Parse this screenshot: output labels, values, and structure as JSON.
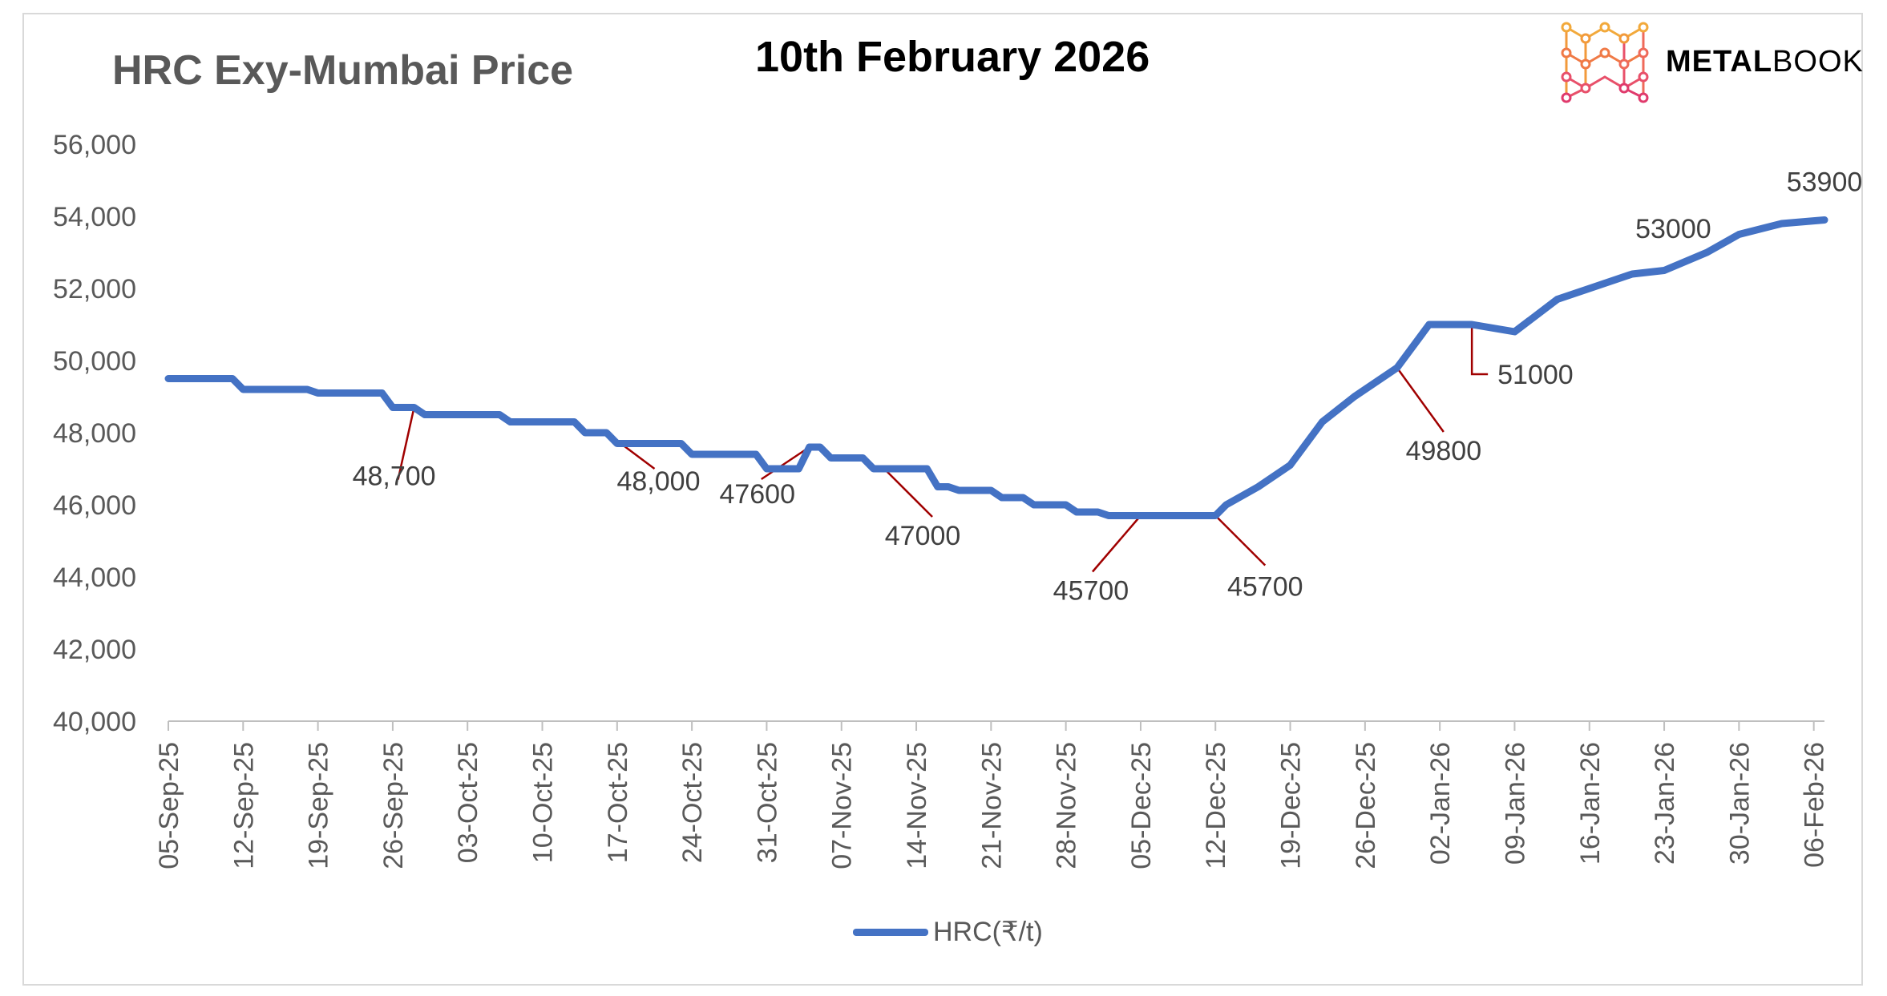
{
  "header": {
    "title": "HRC Exy-Mumbai Price",
    "date": "10th February 2026",
    "brand_bold": "METAL",
    "brand_light": "BOOK"
  },
  "colors": {
    "series": "#4472c4",
    "leader": "#a00000",
    "axis": "#bfbfbf",
    "tick_text": "#595959"
  },
  "chart_data": {
    "type": "line",
    "title": "HRC Exy-Mumbai Price",
    "xlabel": "",
    "ylabel": "",
    "ylim": [
      40000,
      56000
    ],
    "yticks": [
      40000,
      42000,
      44000,
      46000,
      48000,
      50000,
      52000,
      54000,
      56000
    ],
    "ytick_labels": [
      "40,000",
      "42,000",
      "44,000",
      "46,000",
      "48,000",
      "50,000",
      "52,000",
      "54,000",
      "56,000"
    ],
    "x_start": "2025-09-05",
    "xticks": [
      "05-Sep-25",
      "12-Sep-25",
      "19-Sep-25",
      "26-Sep-25",
      "03-Oct-25",
      "10-Oct-25",
      "17-Oct-25",
      "24-Oct-25",
      "31-Oct-25",
      "07-Nov-25",
      "14-Nov-25",
      "21-Nov-25",
      "28-Nov-25",
      "05-Dec-25",
      "12-Dec-25",
      "19-Dec-25",
      "26-Dec-25",
      "02-Jan-26",
      "09-Jan-26",
      "16-Jan-26",
      "23-Jan-26",
      "30-Jan-26",
      "06-Feb-26"
    ],
    "legend": "bottom",
    "grid": false,
    "series": [
      {
        "name": "HRC(₹/t)",
        "points": [
          [
            "2025-09-05",
            49500
          ],
          [
            "2025-09-11",
            49500
          ],
          [
            "2025-09-12",
            49200
          ],
          [
            "2025-09-18",
            49200
          ],
          [
            "2025-09-19",
            49100
          ],
          [
            "2025-09-25",
            49100
          ],
          [
            "2025-09-26",
            48700
          ],
          [
            "2025-09-28",
            48700
          ],
          [
            "2025-09-29",
            48500
          ],
          [
            "2025-10-06",
            48500
          ],
          [
            "2025-10-07",
            48300
          ],
          [
            "2025-10-13",
            48300
          ],
          [
            "2025-10-14",
            48000
          ],
          [
            "2025-10-16",
            48000
          ],
          [
            "2025-10-17",
            47700
          ],
          [
            "2025-10-23",
            47700
          ],
          [
            "2025-10-24",
            47400
          ],
          [
            "2025-10-30",
            47400
          ],
          [
            "2025-10-31",
            47000
          ],
          [
            "2025-11-03",
            47000
          ],
          [
            "2025-11-04",
            47600
          ],
          [
            "2025-11-05",
            47600
          ],
          [
            "2025-11-06",
            47300
          ],
          [
            "2025-11-09",
            47300
          ],
          [
            "2025-11-10",
            47000
          ],
          [
            "2025-11-15",
            47000
          ],
          [
            "2025-11-16",
            46500
          ],
          [
            "2025-11-17",
            46500
          ],
          [
            "2025-11-18",
            46400
          ],
          [
            "2025-11-21",
            46400
          ],
          [
            "2025-11-22",
            46200
          ],
          [
            "2025-11-24",
            46200
          ],
          [
            "2025-11-25",
            46000
          ],
          [
            "2025-11-28",
            46000
          ],
          [
            "2025-11-29",
            45800
          ],
          [
            "2025-12-01",
            45800
          ],
          [
            "2025-12-02",
            45700
          ],
          [
            "2025-12-12",
            45700
          ],
          [
            "2025-12-13",
            46000
          ],
          [
            "2025-12-16",
            46500
          ],
          [
            "2025-12-19",
            47100
          ],
          [
            "2025-12-22",
            48300
          ],
          [
            "2025-12-25",
            49000
          ],
          [
            "2025-12-29",
            49800
          ],
          [
            "2026-01-01",
            51000
          ],
          [
            "2026-01-05",
            51000
          ],
          [
            "2026-01-09",
            50800
          ],
          [
            "2026-01-13",
            51700
          ],
          [
            "2026-01-16",
            52000
          ],
          [
            "2026-01-20",
            52400
          ],
          [
            "2026-01-23",
            52500
          ],
          [
            "2026-01-27",
            53000
          ],
          [
            "2026-01-30",
            53500
          ],
          [
            "2026-02-03",
            53800
          ],
          [
            "2026-02-07",
            53900
          ]
        ]
      }
    ],
    "annotations": [
      {
        "text": "48,700",
        "x": "2025-09-28",
        "y": 48700
      },
      {
        "text": "48,000",
        "x": "2025-10-16",
        "y": 48000
      },
      {
        "text": "47600",
        "x": "2025-11-04",
        "y": 47600
      },
      {
        "text": "47000",
        "x": "2025-11-11",
        "y": 47000
      },
      {
        "text": "45700",
        "x": "2025-12-05",
        "y": 45700
      },
      {
        "text": "45700",
        "x": "2025-12-12",
        "y": 45700
      },
      {
        "text": "49800",
        "x": "2025-12-29",
        "y": 49800
      },
      {
        "text": "51000",
        "x": "2026-01-05",
        "y": 51000
      },
      {
        "text": "53000",
        "x": "2026-01-27",
        "y": 53000
      },
      {
        "text": "53900",
        "x": "2026-02-07",
        "y": 53900
      }
    ]
  }
}
